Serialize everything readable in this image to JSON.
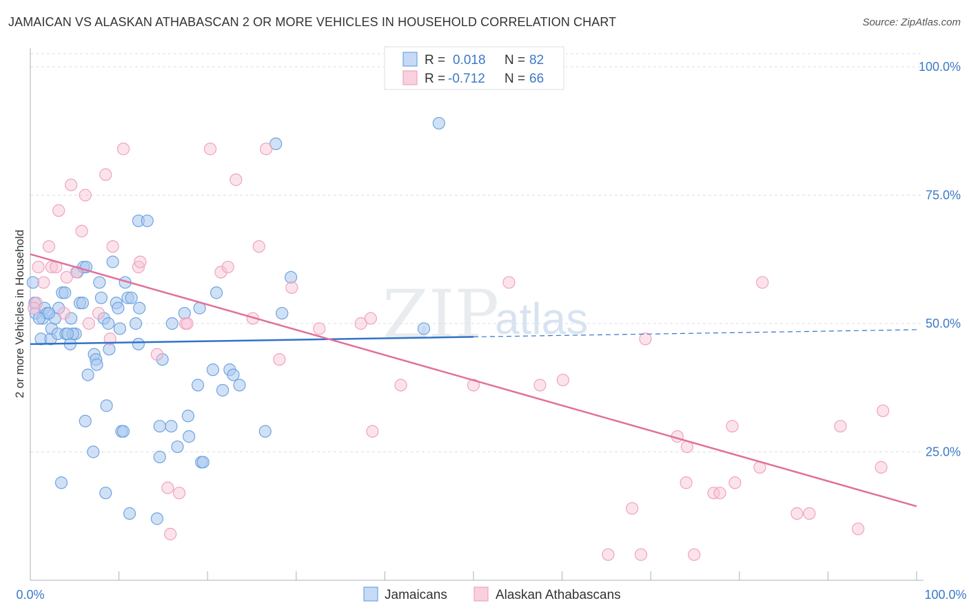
{
  "title": "JAMAICAN VS ALASKAN ATHABASCAN 2 OR MORE VEHICLES IN HOUSEHOLD CORRELATION CHART",
  "source": "Source: ZipAtlas.com",
  "watermark": {
    "zip": "ZIP",
    "atlas": "atlas"
  },
  "legend_top": {
    "rows": [
      {
        "r_label": "R =",
        "r_value": "0.018",
        "n_label": "N =",
        "n_value": "82"
      },
      {
        "r_label": "R =",
        "r_value": "-0.712",
        "n_label": "N =",
        "n_value": "66"
      }
    ]
  },
  "chart_data": {
    "type": "scatter",
    "title": "JAMAICAN VS ALASKAN ATHABASCAN 2 OR MORE VEHICLES IN HOUSEHOLD CORRELATION CHART",
    "xlabel": "",
    "ylabel": "2 or more Vehicles in Household",
    "xlim": [
      0,
      100
    ],
    "ylim": [
      0,
      104
    ],
    "x_tick_labels": [
      "0.0%",
      "100.0%"
    ],
    "y_ticks": [
      25,
      50,
      75,
      100
    ],
    "y_tick_labels": [
      "25.0%",
      "50.0%",
      "75.0%",
      "100.0%"
    ],
    "grid": true,
    "legend_position": "top-center",
    "colors": {
      "jamaicans": "#6fa3e0",
      "alaskan": "#f0a2bd",
      "jam_line": "#2f72c8",
      "ala_line": "#e0709a"
    },
    "series": [
      {
        "name": "Jamaicans",
        "R": 0.018,
        "N": 82,
        "trend": {
          "x0": 0,
          "y0": 46.0,
          "x1": 50,
          "y1": 47.4,
          "dash_x1": 100,
          "dash_y1": 48.8
        },
        "points": [
          [
            0.3,
            58
          ],
          [
            0.5,
            54
          ],
          [
            0.6,
            52
          ],
          [
            1.2,
            47
          ],
          [
            1.4,
            51
          ],
          [
            1.6,
            53
          ],
          [
            1.9,
            52
          ],
          [
            2.3,
            47
          ],
          [
            2.4,
            49
          ],
          [
            2.8,
            51
          ],
          [
            3.1,
            48
          ],
          [
            3.2,
            53
          ],
          [
            3.6,
            56
          ],
          [
            3.9,
            56
          ],
          [
            4,
            48
          ],
          [
            4.5,
            46
          ],
          [
            4.6,
            51
          ],
          [
            5.1,
            48
          ],
          [
            5.3,
            60
          ],
          [
            5.6,
            54
          ],
          [
            5.9,
            54
          ],
          [
            6,
            61
          ],
          [
            6.3,
            61
          ],
          [
            6.2,
            31
          ],
          [
            6.5,
            40
          ],
          [
            7.1,
            25
          ],
          [
            7.2,
            44
          ],
          [
            7.4,
            43
          ],
          [
            7.5,
            42
          ],
          [
            7.8,
            58
          ],
          [
            8,
            55
          ],
          [
            8.3,
            51
          ],
          [
            8.5,
            17
          ],
          [
            8.6,
            34
          ],
          [
            8.8,
            50
          ],
          [
            8.9,
            45
          ],
          [
            9.3,
            62
          ],
          [
            9.7,
            54
          ],
          [
            9.9,
            53
          ],
          [
            10.1,
            49
          ],
          [
            10.3,
            29
          ],
          [
            10.5,
            29
          ],
          [
            10.7,
            58
          ],
          [
            11,
            55
          ],
          [
            11.4,
            55
          ],
          [
            11.9,
            50
          ],
          [
            12.2,
            46
          ],
          [
            12.3,
            53
          ],
          [
            12.2,
            70
          ],
          [
            13.2,
            70
          ],
          [
            14.3,
            12
          ],
          [
            14.6,
            30
          ],
          [
            14.6,
            24
          ],
          [
            14.9,
            43
          ],
          [
            15.9,
            30
          ],
          [
            16,
            50
          ],
          [
            16.6,
            26
          ],
          [
            17.4,
            52
          ],
          [
            17.8,
            32
          ],
          [
            17.9,
            28
          ],
          [
            18.9,
            38
          ],
          [
            19.3,
            23
          ],
          [
            19.1,
            53
          ],
          [
            19.5,
            23
          ],
          [
            20.6,
            41
          ],
          [
            21.7,
            37
          ],
          [
            22.5,
            41
          ],
          [
            22.9,
            40
          ],
          [
            23.6,
            38
          ],
          [
            26.5,
            29
          ],
          [
            27.7,
            85
          ],
          [
            28.4,
            52
          ],
          [
            29.4,
            59
          ],
          [
            3.5,
            19
          ],
          [
            11.2,
            13
          ],
          [
            4.8,
            48
          ],
          [
            2.1,
            52
          ],
          [
            1.0,
            51
          ],
          [
            4.2,
            48
          ],
          [
            21.0,
            56
          ],
          [
            44.4,
            49
          ],
          [
            46.1,
            89
          ]
        ]
      },
      {
        "name": "Alaskan Athabascans",
        "R": -0.712,
        "N": 66,
        "trend": {
          "x0": 0,
          "y0": 63.5,
          "x1": 100,
          "y1": 14.4
        },
        "points": [
          [
            0.7,
            54
          ],
          [
            0.9,
            61
          ],
          [
            1.5,
            58
          ],
          [
            2.1,
            65
          ],
          [
            2.4,
            61
          ],
          [
            2.9,
            61
          ],
          [
            3.2,
            72
          ],
          [
            3.8,
            52
          ],
          [
            4.1,
            59
          ],
          [
            4.6,
            77
          ],
          [
            5.2,
            60
          ],
          [
            5.8,
            68
          ],
          [
            6.2,
            75
          ],
          [
            6.6,
            50
          ],
          [
            7.7,
            52
          ],
          [
            8.5,
            79
          ],
          [
            9,
            47
          ],
          [
            9.3,
            65
          ],
          [
            10.5,
            84
          ],
          [
            12.2,
            61
          ],
          [
            12.4,
            62
          ],
          [
            14.3,
            44
          ],
          [
            15.5,
            18
          ],
          [
            15.8,
            9
          ],
          [
            16.8,
            17
          ],
          [
            17.5,
            50
          ],
          [
            17.7,
            50
          ],
          [
            20.3,
            84
          ],
          [
            21.5,
            60
          ],
          [
            22.3,
            61
          ],
          [
            23.2,
            78
          ],
          [
            25.1,
            51
          ],
          [
            25.8,
            65
          ],
          [
            26.6,
            84
          ],
          [
            28.1,
            43
          ],
          [
            29.5,
            57
          ],
          [
            32.6,
            49
          ],
          [
            37.3,
            50
          ],
          [
            38.4,
            51
          ],
          [
            38.6,
            29
          ],
          [
            41.8,
            38
          ],
          [
            50,
            38
          ],
          [
            54,
            58
          ],
          [
            57.5,
            38
          ],
          [
            60.1,
            39
          ],
          [
            65.2,
            5
          ],
          [
            67.9,
            14
          ],
          [
            68.9,
            5
          ],
          [
            69.4,
            47
          ],
          [
            73,
            28
          ],
          [
            74,
            19
          ],
          [
            74.1,
            26
          ],
          [
            74.9,
            5
          ],
          [
            77.1,
            17
          ],
          [
            77.8,
            17
          ],
          [
            79.2,
            30
          ],
          [
            79.5,
            19
          ],
          [
            82.3,
            22
          ],
          [
            82.6,
            58
          ],
          [
            86.5,
            13
          ],
          [
            87.9,
            13
          ],
          [
            91.4,
            30
          ],
          [
            93.4,
            10
          ],
          [
            96,
            22
          ],
          [
            96.2,
            33
          ],
          [
            0.4,
            53
          ]
        ]
      }
    ]
  },
  "bottom_legend": {
    "items": [
      "Jamaicans",
      "Alaskan Athabascans"
    ]
  }
}
